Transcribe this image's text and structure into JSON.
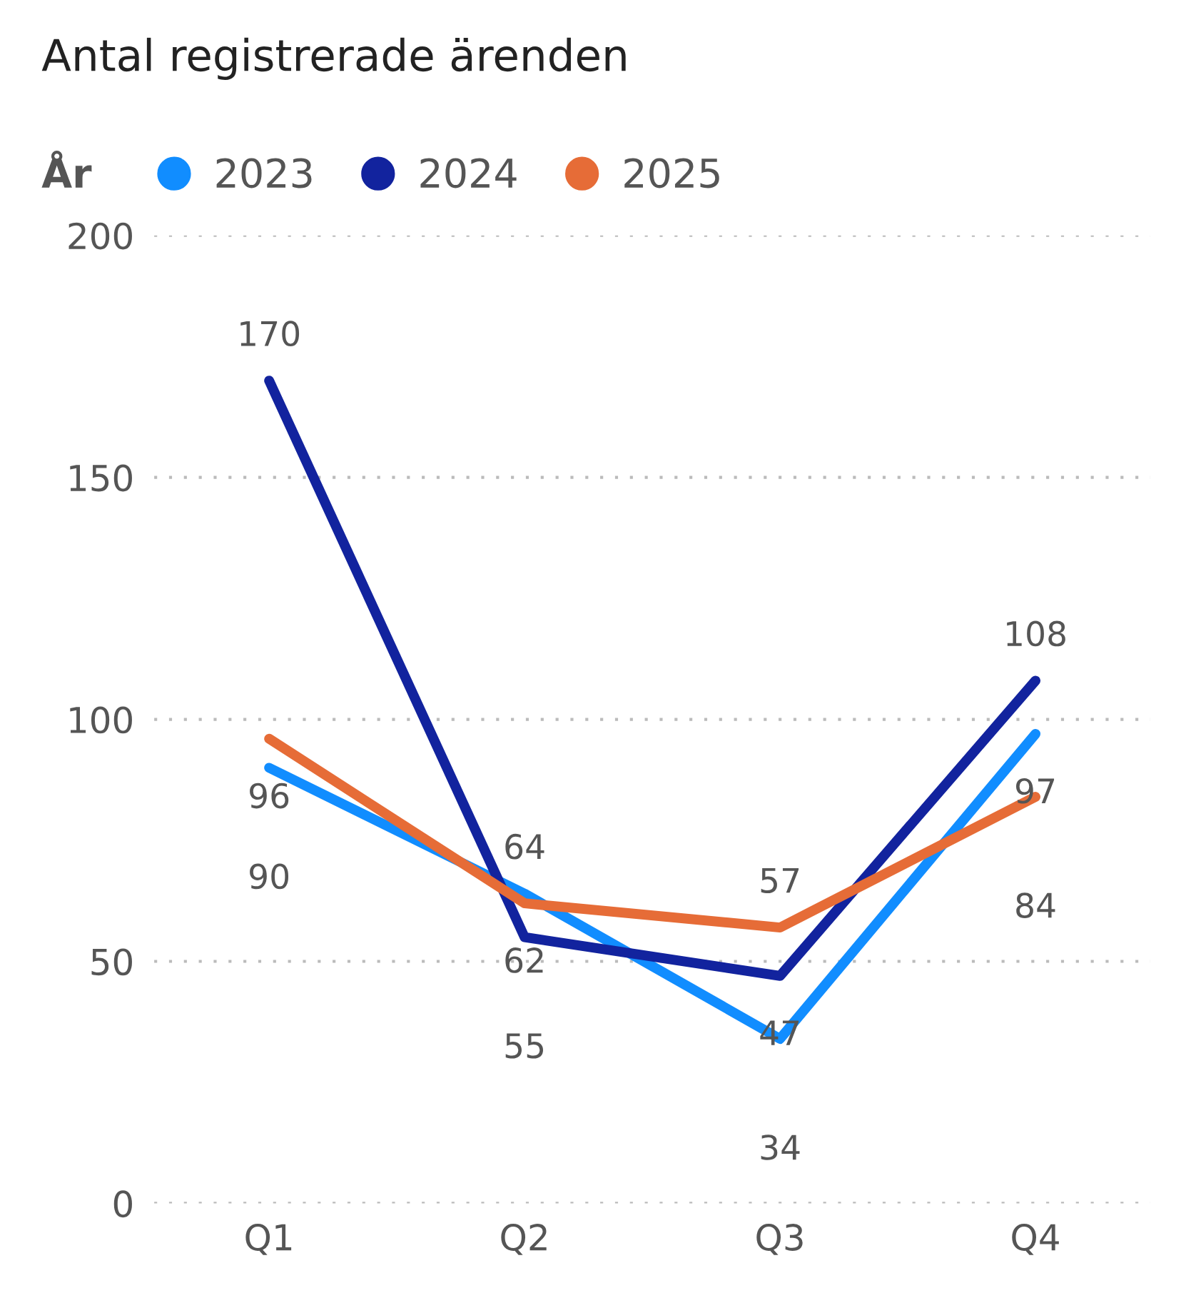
{
  "chart_data": {
    "type": "line",
    "title": "Antal registrerade ärenden",
    "legend_title": "År",
    "categories": [
      "Q1",
      "Q2",
      "Q3",
      "Q4"
    ],
    "series": [
      {
        "name": "2023",
        "color": "#118dff",
        "values": [
          90,
          64,
          34,
          97
        ]
      },
      {
        "name": "2024",
        "color": "#12239e",
        "values": [
          170,
          55,
          47,
          108
        ]
      },
      {
        "name": "2025",
        "color": "#e66c37",
        "values": [
          96,
          62,
          57,
          84
        ]
      }
    ],
    "ylim": [
      0,
      200
    ],
    "yticks": [
      0,
      50,
      100,
      150,
      200
    ],
    "grid": "y",
    "legend": "top left",
    "data_labels": true,
    "marker": "none",
    "line_style": "solid"
  }
}
